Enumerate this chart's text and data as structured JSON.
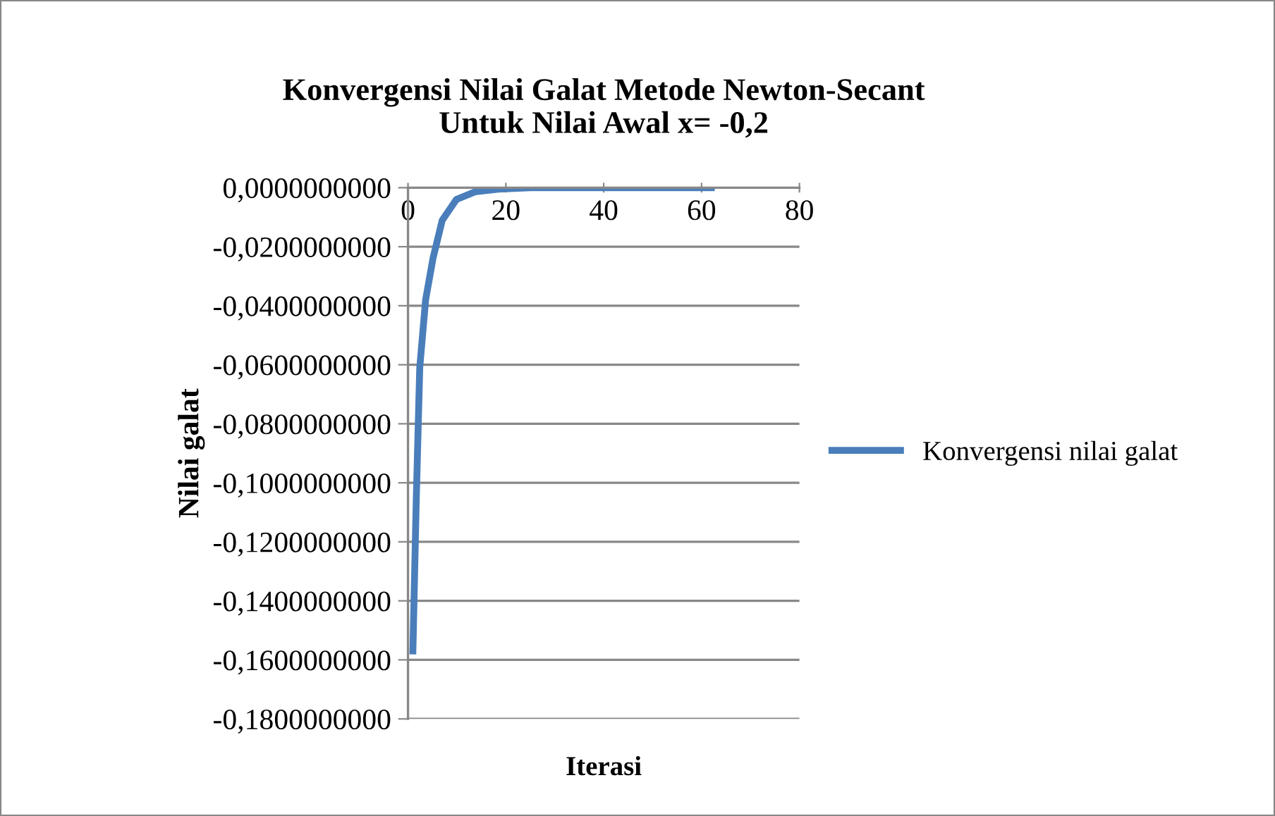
{
  "chart_data": {
    "type": "line",
    "title": "Konvergensi Nilai Galat Metode Newton-Secant\nUntuk Nilai Awal x= -0,2",
    "xlabel": "Iterasi",
    "ylabel": "Nilai galat",
    "series": [
      {
        "name": "Konvergensi nilai galat",
        "color": "#4a7ebb",
        "x": [
          1,
          1.7,
          2.4,
          3.6,
          5.1,
          7,
          9.9,
          13.7,
          18.5,
          25,
          40,
          62
        ],
        "values": [
          -0.157,
          -0.105,
          -0.061,
          -0.038,
          -0.024,
          -0.011,
          -0.004,
          -0.0014,
          -0.0005,
          0,
          0,
          0
        ]
      }
    ],
    "xlim": [
      0,
      80
    ],
    "xticks": [
      0,
      20,
      40,
      60,
      80
    ],
    "ylim": [
      -0.18,
      0
    ],
    "yticks": [
      {
        "value": 0,
        "label": "0,0000000000"
      },
      {
        "value": -0.02,
        "label": "-0,0200000000"
      },
      {
        "value": -0.04,
        "label": "-0,0400000000"
      },
      {
        "value": -0.06,
        "label": "-0,0600000000"
      },
      {
        "value": -0.08,
        "label": "-0,0800000000"
      },
      {
        "value": -0.1,
        "label": "-0,1000000000"
      },
      {
        "value": -0.12,
        "label": "-0,1200000000"
      },
      {
        "value": -0.14,
        "label": "-0,1400000000"
      },
      {
        "value": -0.16,
        "label": "-0,1600000000"
      },
      {
        "value": -0.18,
        "label": "-0,1800000000"
      }
    ],
    "grid": "y",
    "legend": "right",
    "marker": "none",
    "line_style": "solid"
  }
}
